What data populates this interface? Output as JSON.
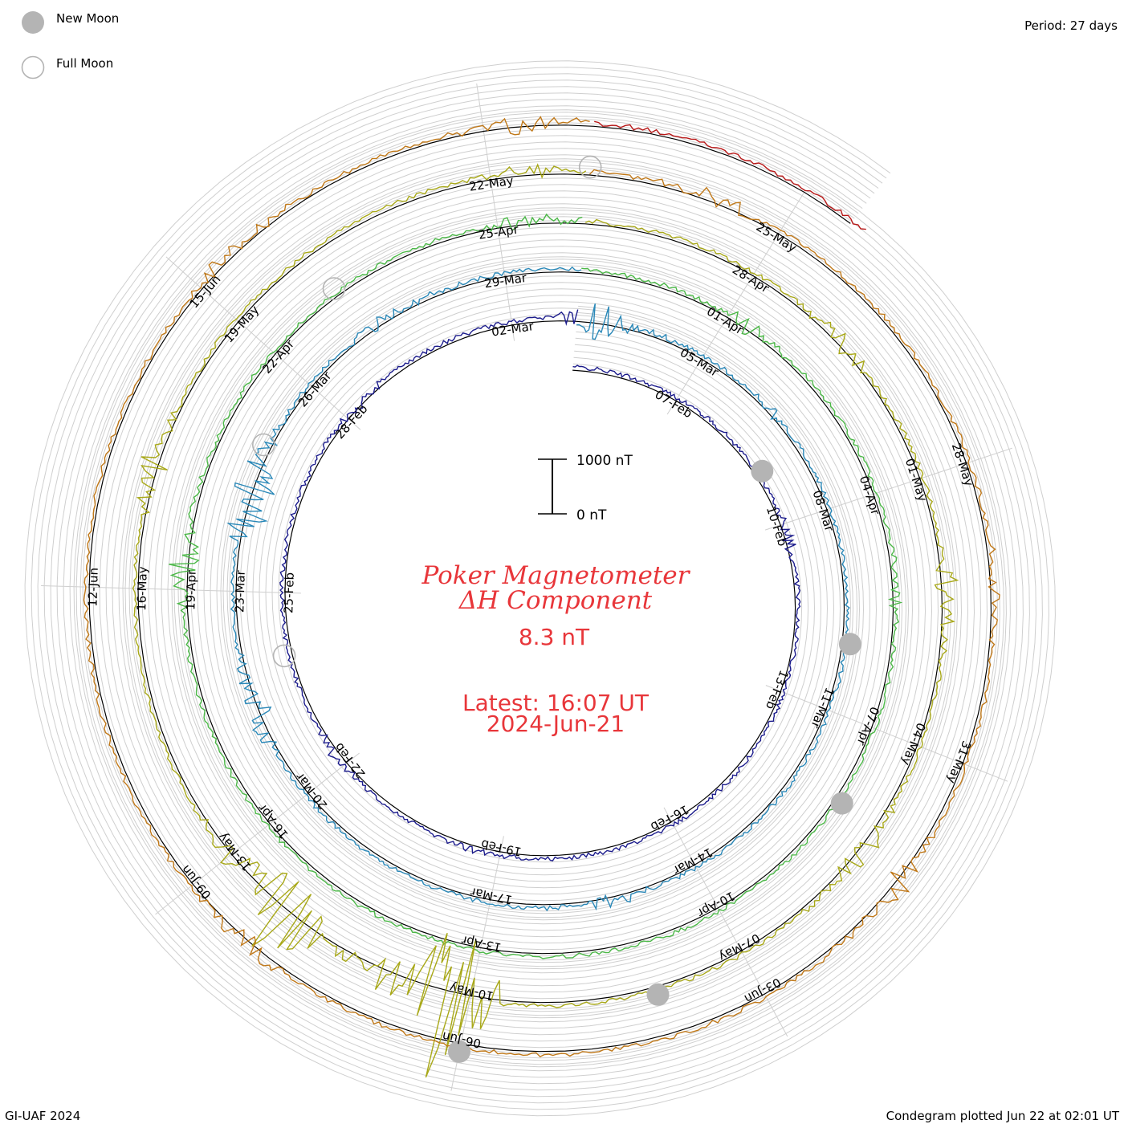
{
  "legend": {
    "new_moon_label": "New Moon",
    "full_moon_label": "Full Moon",
    "new_moon_color": "#b4b4b4",
    "full_moon_color": "#b4b4b4"
  },
  "header": {
    "period": "Period: 27 days"
  },
  "center": {
    "title_line1": "Poker Magnetometer",
    "title_line2": "ΔH Component",
    "value": "8.3 nT",
    "latest_time": "Latest: 16:07 UT",
    "latest_date": "2024-Jun-21",
    "title_color": "#e8363a"
  },
  "scale_bar": {
    "top_label": "1000 nT",
    "bottom_label": "0 nT"
  },
  "footer": {
    "credit": "GI-UAF 2024",
    "plotted": "Condegram plotted Jun 22 at 02:01 UT"
  },
  "chart_data": {
    "type": "line",
    "title": "Poker Magnetometer ΔH Component",
    "subtitle": "8.3 nT",
    "period_days": 27,
    "start_date": "2024-Feb-05",
    "end_date": "2024-Jun-21",
    "value_unit": "nT",
    "scale_range": [
      0,
      1000
    ],
    "date_labels": [
      "07-Feb",
      "10-Feb",
      "13-Feb",
      "16-Feb",
      "19-Feb",
      "22-Feb",
      "25-Feb",
      "28-Feb",
      "02-Mar",
      "05-Mar",
      "08-Mar",
      "11-Mar",
      "14-Mar",
      "17-Mar",
      "20-Mar",
      "23-Mar",
      "26-Mar",
      "29-Mar",
      "01-Apr",
      "04-Apr",
      "07-Apr",
      "10-Apr",
      "13-Apr",
      "16-Apr",
      "19-Apr",
      "22-Apr",
      "25-Apr",
      "28-Apr",
      "01-May",
      "04-May",
      "07-May",
      "10-May",
      "13-May",
      "16-May",
      "19-May",
      "22-May",
      "25-May",
      "28-May",
      "31-May",
      "03-Jun",
      "06-Jun",
      "09-Jun",
      "12-Jun",
      "15-Jun"
    ],
    "new_moon_dates": [
      "2024-Feb-09",
      "2024-Mar-10",
      "2024-Apr-08",
      "2024-May-08",
      "2024-Jun-06"
    ],
    "full_moon_dates": [
      "2024-Feb-24",
      "2024-Mar-25",
      "2024-Apr-23",
      "2024-May-23"
    ],
    "series_colors": [
      "#111111",
      "#1c1c8c",
      "#3a3ab8",
      "#2a88b8",
      "#2aa8a0",
      "#4cb848",
      "#88bc28",
      "#a8a818",
      "#b8a010",
      "#c07818",
      "#c04818",
      "#b81818"
    ],
    "disturbances": [
      {
        "date": "2024-Feb-10",
        "amplitude_nT": 120
      },
      {
        "date": "2024-Feb-19",
        "amplitude_nT": 90
      },
      {
        "date": "2024-Feb-22",
        "amplitude_nT": 120
      },
      {
        "date": "2024-Feb-28",
        "amplitude_nT": 120
      },
      {
        "date": "2024-Mar-03",
        "amplitude_nT": 450
      },
      {
        "date": "2024-Mar-06",
        "amplitude_nT": 100
      },
      {
        "date": "2024-Mar-15",
        "amplitude_nT": 140
      },
      {
        "date": "2024-Mar-21",
        "amplitude_nT": 420
      },
      {
        "date": "2024-Mar-24",
        "amplitude_nT": 900
      },
      {
        "date": "2024-Mar-27",
        "amplitude_nT": 180
      },
      {
        "date": "2024-Apr-01",
        "amplitude_nT": 180
      },
      {
        "date": "2024-Apr-05",
        "amplitude_nT": 130
      },
      {
        "date": "2024-Apr-19",
        "amplitude_nT": 350
      },
      {
        "date": "2024-Apr-25",
        "amplitude_nT": 200
      },
      {
        "date": "2024-Apr-29",
        "amplitude_nT": 200
      },
      {
        "date": "2024-May-02",
        "amplitude_nT": 320
      },
      {
        "date": "2024-May-05",
        "amplitude_nT": 300
      },
      {
        "date": "2024-May-10",
        "amplitude_nT": 1900
      },
      {
        "date": "2024-May-12",
        "amplitude_nT": 1300
      },
      {
        "date": "2024-May-17",
        "amplitude_nT": 320
      },
      {
        "date": "2024-May-22",
        "amplitude_nT": 200
      },
      {
        "date": "2024-May-24",
        "amplitude_nT": 200
      },
      {
        "date": "2024-May-29",
        "amplitude_nT": 150
      },
      {
        "date": "2024-Jun-01",
        "amplitude_nT": 250
      },
      {
        "date": "2024-Jun-08",
        "amplitude_nT": 250
      },
      {
        "date": "2024-Jun-15",
        "amplitude_nT": 200
      },
      {
        "date": "2024-Jun-18",
        "amplitude_nT": 200
      }
    ]
  }
}
